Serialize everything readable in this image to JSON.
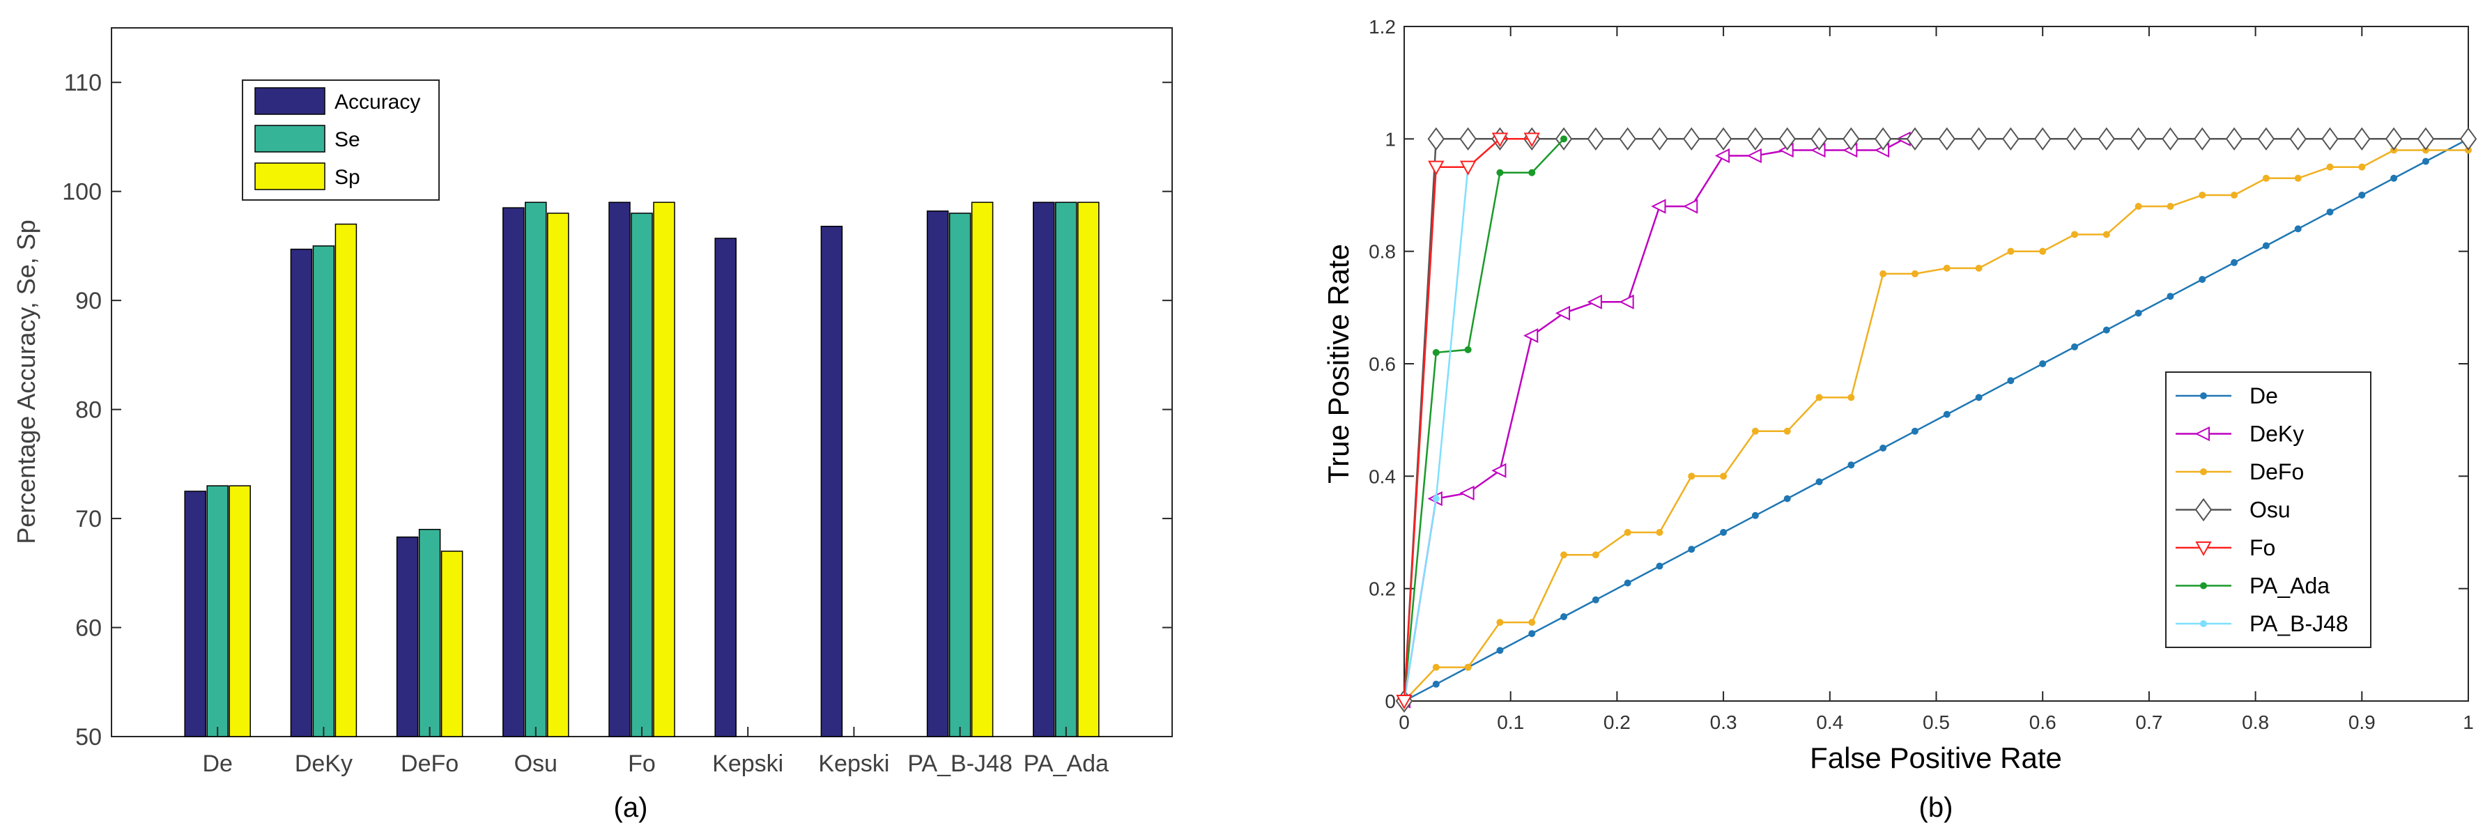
{
  "chart_data": [
    {
      "type": "bar",
      "caption": "(a)",
      "title": "",
      "xlabel": "",
      "ylabel": "Percentage Accuracy, Se, Sp",
      "ylim": [
        50,
        115
      ],
      "yticks": [
        50,
        60,
        70,
        80,
        90,
        100,
        110
      ],
      "categories": [
        "De",
        "DeKy",
        "DeFo",
        "Osu",
        "Fo",
        "Kepski",
        "Kepski",
        "PA_B-J48",
        "PA_Ada"
      ],
      "series": [
        {
          "name": "Accuracy",
          "color": "#2e2a7e",
          "values": [
            72.5,
            94.7,
            68.3,
            98.5,
            99,
            95.7,
            96.8,
            98.2,
            99
          ]
        },
        {
          "name": "Se",
          "color": "#36b497",
          "values": [
            73,
            95,
            69,
            99,
            98,
            null,
            null,
            98,
            99
          ]
        },
        {
          "name": "Sp",
          "color": "#f5f500",
          "values": [
            73,
            97,
            67,
            98,
            99,
            null,
            null,
            99,
            99
          ]
        }
      ],
      "legend": "top-left"
    },
    {
      "type": "line",
      "caption": "(b)",
      "title": "",
      "xlabel": "False Positive Rate",
      "ylabel": "True Positive Rate",
      "xlim": [
        0,
        1
      ],
      "ylim": [
        0,
        1.2
      ],
      "xticks": [
        "0",
        "0.1",
        "0.2",
        "0.3",
        "0.4",
        "0.5",
        "0.6",
        "0.7",
        "0.8",
        "0.9",
        "1"
      ],
      "yticks": [
        "0",
        "0.2",
        "0.4",
        "0.6",
        "0.8",
        "1",
        "1.2"
      ],
      "legend": "right",
      "series": [
        {
          "name": "De",
          "color": "#1f77b4",
          "marker": "dot",
          "x": [
            0,
            0.03,
            0.06,
            0.09,
            0.12,
            0.15,
            0.18,
            0.21,
            0.24,
            0.27,
            0.3,
            0.33,
            0.36,
            0.39,
            0.42,
            0.45,
            0.48,
            0.51,
            0.54,
            0.57,
            0.6,
            0.63,
            0.66,
            0.69,
            0.72,
            0.75,
            0.78,
            0.81,
            0.84,
            0.87,
            0.9,
            0.93,
            0.96,
            1
          ],
          "y": [
            0,
            0.03,
            0.06,
            0.09,
            0.12,
            0.15,
            0.18,
            0.21,
            0.24,
            0.27,
            0.3,
            0.33,
            0.36,
            0.39,
            0.42,
            0.45,
            0.48,
            0.51,
            0.54,
            0.57,
            0.6,
            0.63,
            0.66,
            0.69,
            0.72,
            0.75,
            0.78,
            0.81,
            0.84,
            0.87,
            0.9,
            0.93,
            0.96,
            1
          ]
        },
        {
          "name": "DeKy",
          "color": "#c000c0",
          "marker": "triangle-left",
          "x": [
            0,
            0.03,
            0.06,
            0.09,
            0.12,
            0.15,
            0.18,
            0.21,
            0.24,
            0.27,
            0.3,
            0.33,
            0.36,
            0.39,
            0.42,
            0.45,
            0.47
          ],
          "y": [
            0,
            0.36,
            0.37,
            0.41,
            0.65,
            0.69,
            0.71,
            0.71,
            0.88,
            0.88,
            0.97,
            0.97,
            0.98,
            0.98,
            0.98,
            0.98,
            1
          ]
        },
        {
          "name": "DeFo",
          "color": "#f0b020",
          "marker": "dot",
          "x": [
            0,
            0.03,
            0.06,
            0.09,
            0.12,
            0.15,
            0.18,
            0.21,
            0.24,
            0.27,
            0.3,
            0.33,
            0.36,
            0.39,
            0.42,
            0.45,
            0.48,
            0.51,
            0.54,
            0.57,
            0.6,
            0.63,
            0.66,
            0.69,
            0.72,
            0.75,
            0.78,
            0.81,
            0.84,
            0.87,
            0.9,
            0.93,
            0.96,
            1
          ],
          "y": [
            0,
            0.06,
            0.06,
            0.14,
            0.14,
            0.26,
            0.26,
            0.3,
            0.3,
            0.4,
            0.4,
            0.48,
            0.48,
            0.54,
            0.54,
            0.76,
            0.76,
            0.77,
            0.77,
            0.8,
            0.8,
            0.83,
            0.83,
            0.88,
            0.88,
            0.9,
            0.9,
            0.93,
            0.93,
            0.95,
            0.95,
            0.98,
            0.98,
            0.98
          ]
        },
        {
          "name": "Osu",
          "color": "#555555",
          "marker": "diamond",
          "x": [
            0,
            0.03,
            0.06,
            0.09,
            0.12,
            0.15,
            0.18,
            0.21,
            0.24,
            0.27,
            0.3,
            0.33,
            0.36,
            0.39,
            0.42,
            0.45,
            0.48,
            0.51,
            0.54,
            0.57,
            0.6,
            0.63,
            0.66,
            0.69,
            0.72,
            0.75,
            0.78,
            0.81,
            0.84,
            0.87,
            0.9,
            0.93,
            0.96,
            1
          ],
          "y": [
            0,
            1,
            1,
            1,
            1,
            1,
            1,
            1,
            1,
            1,
            1,
            1,
            1,
            1,
            1,
            1,
            1,
            1,
            1,
            1,
            1,
            1,
            1,
            1,
            1,
            1,
            1,
            1,
            1,
            1,
            1,
            1,
            1,
            1
          ]
        },
        {
          "name": "Fo",
          "color": "#ff2020",
          "marker": "triangle-down",
          "x": [
            0,
            0.03,
            0.06,
            0.09,
            0.12
          ],
          "y": [
            0,
            0.95,
            0.95,
            1,
            1
          ]
        },
        {
          "name": "PA_Ada",
          "color": "#1a9a2a",
          "marker": "dot",
          "x": [
            0,
            0.03,
            0.06,
            0.09,
            0.12,
            0.15
          ],
          "y": [
            0,
            0.62,
            0.625,
            0.94,
            0.94,
            1
          ]
        },
        {
          "name": "PA_B-J48",
          "color": "#7fdfff",
          "marker": "dot",
          "x": [
            0,
            0.03,
            0.06,
            0.09,
            0.12
          ],
          "y": [
            0,
            0.36,
            0.95,
            1,
            1
          ]
        }
      ]
    }
  ]
}
